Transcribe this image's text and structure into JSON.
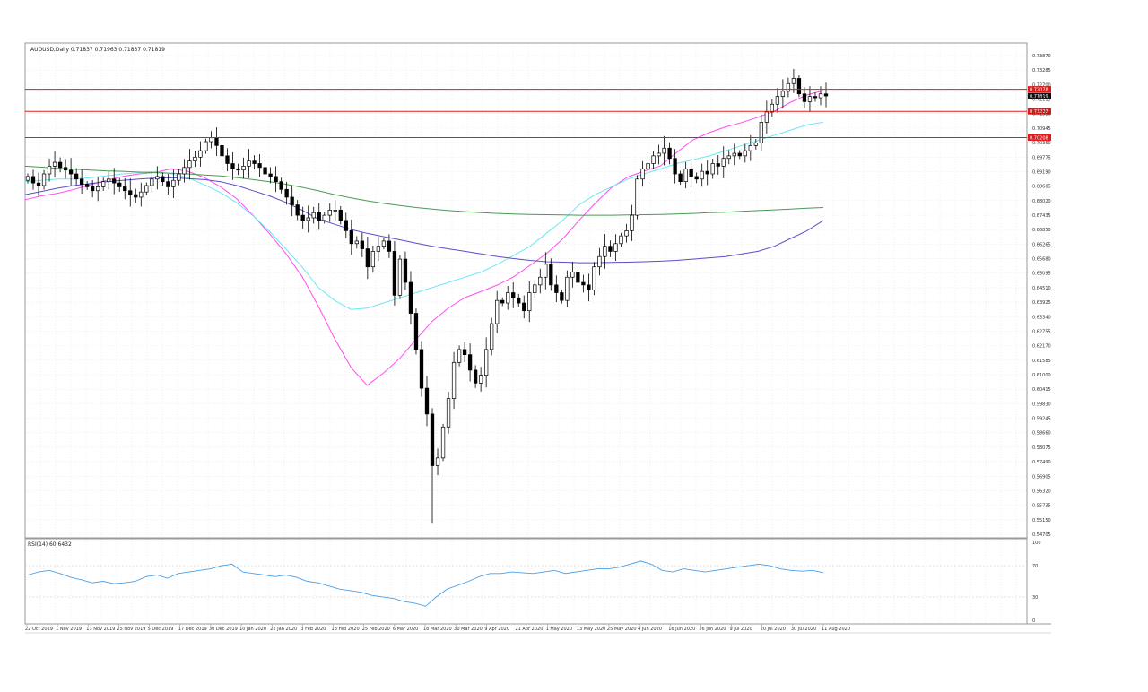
{
  "chart_data": [
    {
      "type": "candlestick",
      "header": "AUDUSD,Daily  0.71837 0.71963 0.71837 0.71819",
      "ylim": [
        0.54705,
        0.7387
      ],
      "y_ticks": [
        "0.73870",
        "0.73285",
        "0.72700",
        "0.72115",
        "0.71530",
        "0.70945",
        "0.70360",
        "0.69775",
        "0.69190",
        "0.68605",
        "0.68020",
        "0.67435",
        "0.66850",
        "0.66265",
        "0.65680",
        "0.65095",
        "0.64510",
        "0.63925",
        "0.63340",
        "0.62755",
        "0.62170",
        "0.61585",
        "0.61000",
        "0.60415",
        "0.59830",
        "0.59245",
        "0.58660",
        "0.58075",
        "0.57490",
        "0.56905",
        "0.56320",
        "0.55735",
        "0.55150",
        "0.54705"
      ],
      "x_labels": [
        "22 Oct 2019",
        "1 Nov 2019",
        "13 Nov 2019",
        "25 Nov 2019",
        "5 Dec 2019",
        "17 Dec 2019",
        "30 Dec 2019",
        "10 Jan 2020",
        "22 Jan 2020",
        "3 Feb 2020",
        "13 Feb 2020",
        "25 Feb 2020",
        "6 Mar 2020",
        "18 Mar 2020",
        "30 Mar 2020",
        "9 Apr 2020",
        "21 Apr 2020",
        "1 May 2020",
        "13 May 2020",
        "25 May 2020",
        "4 Jun 2020",
        "16 Jun 2020",
        "26 Jun 2020",
        "9 Jul 2020",
        "20 Jul 2020",
        "30 Jul 2020",
        "11 Aug 2020"
      ],
      "horizontal_lines": [
        {
          "value": 0.72078,
          "label": "0.72078",
          "color": "#e31a1a"
        },
        {
          "value": 0.71223,
          "label": "0.71223",
          "color": "#e31a1a"
        },
        {
          "value": 0.70208,
          "label": "0.70208",
          "color": "#e31a1a"
        }
      ],
      "current_price": {
        "value": 0.71819,
        "label": "0.71819",
        "color": "#111111"
      },
      "close_series": [
        0.687,
        0.6845,
        0.6835,
        0.688,
        0.691,
        0.6925,
        0.6905,
        0.6895,
        0.688,
        0.686,
        0.684,
        0.683,
        0.6815,
        0.683,
        0.685,
        0.686,
        0.6845,
        0.683,
        0.6815,
        0.68,
        0.679,
        0.681,
        0.6835,
        0.686,
        0.687,
        0.685,
        0.683,
        0.6855,
        0.688,
        0.6905,
        0.693,
        0.6945,
        0.697,
        0.7005,
        0.702,
        0.699,
        0.695,
        0.692,
        0.69,
        0.6895,
        0.691,
        0.693,
        0.692,
        0.6905,
        0.688,
        0.687,
        0.685,
        0.682,
        0.679,
        0.676,
        0.672,
        0.67,
        0.671,
        0.673,
        0.67,
        0.672,
        0.674,
        0.674,
        0.67,
        0.666,
        0.661,
        0.662,
        0.659,
        0.652,
        0.658,
        0.66,
        0.662,
        0.658,
        0.641,
        0.655,
        0.646,
        0.634,
        0.62,
        0.605,
        0.595,
        0.575,
        0.578,
        0.59,
        0.601,
        0.615,
        0.62,
        0.618,
        0.612,
        0.607,
        0.61,
        0.62,
        0.63,
        0.639,
        0.638,
        0.642,
        0.64,
        0.638,
        0.635,
        0.642,
        0.645,
        0.648,
        0.653,
        0.645,
        0.642,
        0.639,
        0.648,
        0.65,
        0.646,
        0.645,
        0.643,
        0.652,
        0.656,
        0.66,
        0.658,
        0.661,
        0.664,
        0.666,
        0.672,
        0.686,
        0.69,
        0.692,
        0.695,
        0.696,
        0.698,
        0.694,
        0.688,
        0.685,
        0.69,
        0.687,
        0.686,
        0.689,
        0.688,
        0.692,
        0.691,
        0.694,
        0.695,
        0.696,
        0.695,
        0.697,
        0.699,
        0.7,
        0.708,
        0.712,
        0.715,
        0.718,
        0.72,
        0.723,
        0.725,
        0.719,
        0.716,
        0.718,
        0.7175,
        0.719,
        0.7182
      ],
      "series": [
        {
          "name": "MA20",
          "color": "#ff4df0",
          "values": [
            0.678,
            0.6795,
            0.6805,
            0.682,
            0.6838,
            0.6855,
            0.687,
            0.688,
            0.6886,
            0.69,
            0.689,
            0.6866,
            0.683,
            0.6783,
            0.6719,
            0.6649,
            0.6572,
            0.6483,
            0.6368,
            0.6242,
            0.6131,
            0.6061,
            0.6109,
            0.6166,
            0.6239,
            0.631,
            0.6361,
            0.6401,
            0.6425,
            0.645,
            0.6482,
            0.6526,
            0.6571,
            0.6628,
            0.67,
            0.6767,
            0.6827,
            0.6868,
            0.6891,
            0.6911,
            0.6963,
            0.7012,
            0.704,
            0.7062,
            0.7079,
            0.71,
            0.7123,
            0.7158,
            0.7186,
            0.7203
          ]
        },
        {
          "name": "MA50",
          "color": "#6ae8f2",
          "values": [
            0.685,
            0.6855,
            0.686,
            0.686,
            0.6865,
            0.6872,
            0.688,
            0.6885,
            0.689,
            0.688,
            0.6865,
            0.6838,
            0.6808,
            0.6768,
            0.6718,
            0.6658,
            0.659,
            0.652,
            0.644,
            0.639,
            0.6355,
            0.636,
            0.638,
            0.64,
            0.642,
            0.644,
            0.646,
            0.648,
            0.65,
            0.653,
            0.6565,
            0.66,
            0.665,
            0.67,
            0.676,
            0.68,
            0.683,
            0.686,
            0.688,
            0.69,
            0.692,
            0.6935,
            0.695,
            0.697,
            0.699,
            0.701,
            0.703,
            0.705,
            0.707,
            0.708
          ]
        },
        {
          "name": "MA100",
          "color": "#5b4ec9",
          "values": [
            0.68,
            0.6812,
            0.6825,
            0.6835,
            0.6843,
            0.685,
            0.6855,
            0.686,
            0.6864,
            0.6865,
            0.6862,
            0.6858,
            0.685,
            0.6835,
            0.6815,
            0.6795,
            0.677,
            0.674,
            0.6705,
            0.6685,
            0.6665,
            0.665,
            0.6637,
            0.6625,
            0.6612,
            0.66,
            0.659,
            0.658,
            0.657,
            0.656,
            0.6552,
            0.6545,
            0.654,
            0.6538,
            0.6536,
            0.6536,
            0.6537,
            0.6538,
            0.654,
            0.6542,
            0.6545,
            0.655,
            0.6555,
            0.656,
            0.657,
            0.658,
            0.66,
            0.663,
            0.666,
            0.67
          ]
        },
        {
          "name": "MA200",
          "color": "#4a9a55",
          "values": [
            0.691,
            0.6906,
            0.6902,
            0.6898,
            0.6895,
            0.6892,
            0.689,
            0.6887,
            0.6885,
            0.6883,
            0.688,
            0.6876,
            0.6872,
            0.6866,
            0.6858,
            0.685,
            0.684,
            0.6828,
            0.6815,
            0.68,
            0.6787,
            0.6776,
            0.6766,
            0.6758,
            0.675,
            0.6744,
            0.6738,
            0.6734,
            0.673,
            0.6727,
            0.6725,
            0.6723,
            0.6722,
            0.6721,
            0.672,
            0.672,
            0.672,
            0.6721,
            0.6722,
            0.6723,
            0.6725,
            0.6727,
            0.673,
            0.6732,
            0.6735,
            0.6738,
            0.6741,
            0.6744,
            0.6747,
            0.675
          ]
        }
      ]
    },
    {
      "type": "line",
      "header": "RSI(14) 60.6432",
      "ylim": [
        0,
        100
      ],
      "y_ticks": [
        "100",
        "70",
        "30",
        "0"
      ],
      "levels": [
        70,
        30
      ],
      "series": [
        {
          "name": "RSI(14)",
          "color": "#4aa0e8",
          "values": [
            58,
            62,
            64,
            60,
            55,
            52,
            48,
            50,
            47,
            48,
            50,
            56,
            58,
            54,
            60,
            62,
            64,
            66,
            70,
            72,
            62,
            60,
            58,
            56,
            58,
            55,
            50,
            48,
            44,
            40,
            38,
            36,
            32,
            30,
            28,
            24,
            22,
            18,
            30,
            40,
            45,
            50,
            56,
            60,
            60,
            62,
            61,
            60,
            62,
            64,
            60,
            62,
            64,
            66,
            66,
            68,
            72,
            76,
            72,
            64,
            62,
            66,
            64,
            62,
            64,
            66,
            68,
            70,
            72,
            70,
            66,
            64,
            63,
            64,
            61
          ]
        }
      ]
    }
  ]
}
